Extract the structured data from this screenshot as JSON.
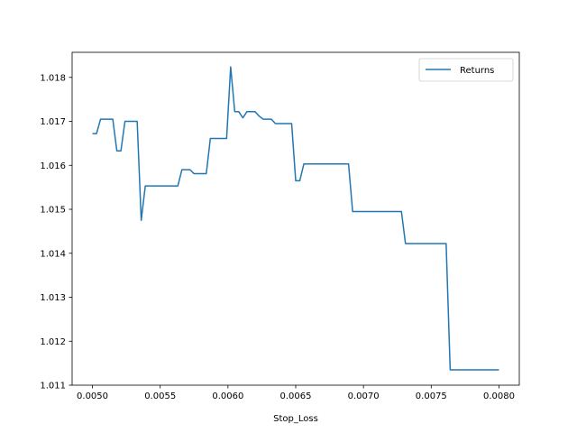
{
  "chart_data": {
    "type": "line",
    "title": "",
    "xlabel": "Stop_Loss",
    "ylabel": "",
    "xlim": [
      0.00485,
      0.00815
    ],
    "ylim": [
      1.011,
      1.01857
    ],
    "xticks": [
      0.005,
      0.0055,
      0.006,
      0.0065,
      0.007,
      0.0075,
      0.008
    ],
    "xtick_labels": [
      "0.0050",
      "0.0055",
      "0.0060",
      "0.0065",
      "0.0070",
      "0.0075",
      "0.0080"
    ],
    "yticks": [
      1.011,
      1.012,
      1.013,
      1.014,
      1.015,
      1.016,
      1.017,
      1.018
    ],
    "ytick_labels": [
      "1.011",
      "1.012",
      "1.013",
      "1.014",
      "1.015",
      "1.016",
      "1.017",
      "1.018"
    ],
    "grid": false,
    "legend": {
      "placement": "top-right",
      "entries": [
        "Returns"
      ]
    },
    "series": [
      {
        "name": "Returns",
        "color": "#1f77b4",
        "x": [
          0.005,
          0.00503,
          0.00506,
          0.00509,
          0.00512,
          0.00515,
          0.00518,
          0.00521,
          0.00524,
          0.00527,
          0.0053,
          0.00533,
          0.00536,
          0.00539,
          0.00542,
          0.00545,
          0.00548,
          0.00551,
          0.00554,
          0.00557,
          0.0056,
          0.00563,
          0.00566,
          0.00569,
          0.00572,
          0.00575,
          0.00578,
          0.00581,
          0.00584,
          0.00587,
          0.0059,
          0.00593,
          0.00596,
          0.00599,
          0.00602,
          0.00605,
          0.00608,
          0.00611,
          0.00614,
          0.00617,
          0.0062,
          0.00623,
          0.00626,
          0.00629,
          0.00632,
          0.00635,
          0.00638,
          0.00641,
          0.00644,
          0.00647,
          0.0065,
          0.00653,
          0.00656,
          0.00659,
          0.00662,
          0.00665,
          0.00668,
          0.00671,
          0.00674,
          0.00677,
          0.0068,
          0.00683,
          0.00686,
          0.00689,
          0.00692,
          0.00695,
          0.00698,
          0.00701,
          0.00704,
          0.00707,
          0.0071,
          0.00713,
          0.00716,
          0.00719,
          0.00722,
          0.00725,
          0.00728,
          0.00731,
          0.00734,
          0.00737,
          0.0074,
          0.00743,
          0.00746,
          0.00749,
          0.00752,
          0.00755,
          0.00758,
          0.00761,
          0.00764,
          0.00767,
          0.0077,
          0.00773,
          0.00776,
          0.00779,
          0.00782,
          0.00785,
          0.00788,
          0.00791,
          0.00794,
          0.00797,
          0.008
        ],
        "y": [
          1.01672,
          1.01672,
          1.01705,
          1.01705,
          1.01705,
          1.01705,
          1.01633,
          1.01633,
          1.017,
          1.017,
          1.017,
          1.017,
          1.01475,
          1.01553,
          1.01553,
          1.01553,
          1.01553,
          1.01553,
          1.01553,
          1.01553,
          1.01553,
          1.01553,
          1.0159,
          1.0159,
          1.0159,
          1.01581,
          1.01581,
          1.01581,
          1.01581,
          1.01661,
          1.01661,
          1.01661,
          1.01661,
          1.01661,
          1.01824,
          1.01722,
          1.01722,
          1.01708,
          1.01722,
          1.01722,
          1.01722,
          1.01712,
          1.01705,
          1.01705,
          1.01705,
          1.01695,
          1.01695,
          1.01695,
          1.01695,
          1.01695,
          1.01565,
          1.01565,
          1.01603,
          1.01603,
          1.01603,
          1.01603,
          1.01603,
          1.01603,
          1.01603,
          1.01603,
          1.01603,
          1.01603,
          1.01603,
          1.01603,
          1.01495,
          1.01495,
          1.01495,
          1.01495,
          1.01495,
          1.01495,
          1.01495,
          1.01495,
          1.01495,
          1.01495,
          1.01495,
          1.01495,
          1.01495,
          1.01422,
          1.01422,
          1.01422,
          1.01422,
          1.01422,
          1.01422,
          1.01422,
          1.01422,
          1.01422,
          1.01422,
          1.01422,
          1.01135,
          1.01135,
          1.01135,
          1.01135,
          1.01135,
          1.01135,
          1.01135,
          1.01135,
          1.01135,
          1.01135,
          1.01135,
          1.01135,
          1.01135
        ]
      }
    ]
  }
}
